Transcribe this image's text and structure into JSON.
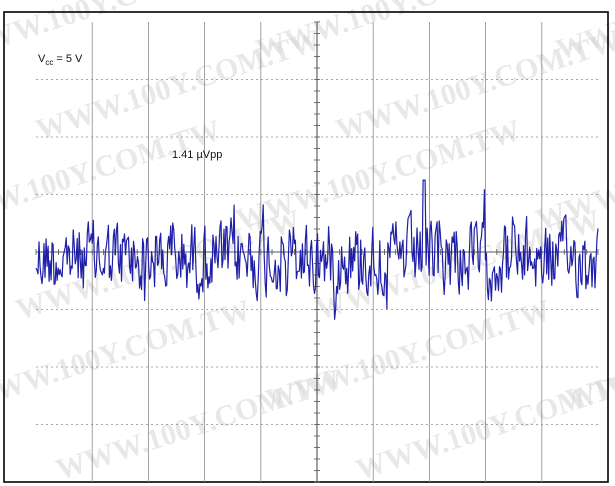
{
  "chart_data": {
    "type": "line",
    "title": "",
    "xlabel": "",
    "ylabel": "",
    "grid": true,
    "annotations": {
      "supply_label": {
        "main": "V",
        "sub": "cc",
        "rest": " = 5 V"
      },
      "amplitude": "1.41 µVpp"
    },
    "divisions": {
      "x": 10,
      "y": 8
    },
    "ylim": [
      -4,
      4
    ],
    "xlim": [
      0,
      10
    ],
    "series": [
      {
        "color": "#1f1fa8",
        "noise": {
          "baseline_div": 0.0,
          "peak_to_peak_div": 1.8,
          "points": 560,
          "spike_at_div": 6.9,
          "spike_height_div": 1.8
        }
      }
    ]
  },
  "watermark": {
    "text": "WWW.100Y.COM.TW",
    "color": "#d6d6d6"
  },
  "colors": {
    "grid": "#8c8c8c",
    "frame": "#000000",
    "trace": "#1f1fa8"
  }
}
